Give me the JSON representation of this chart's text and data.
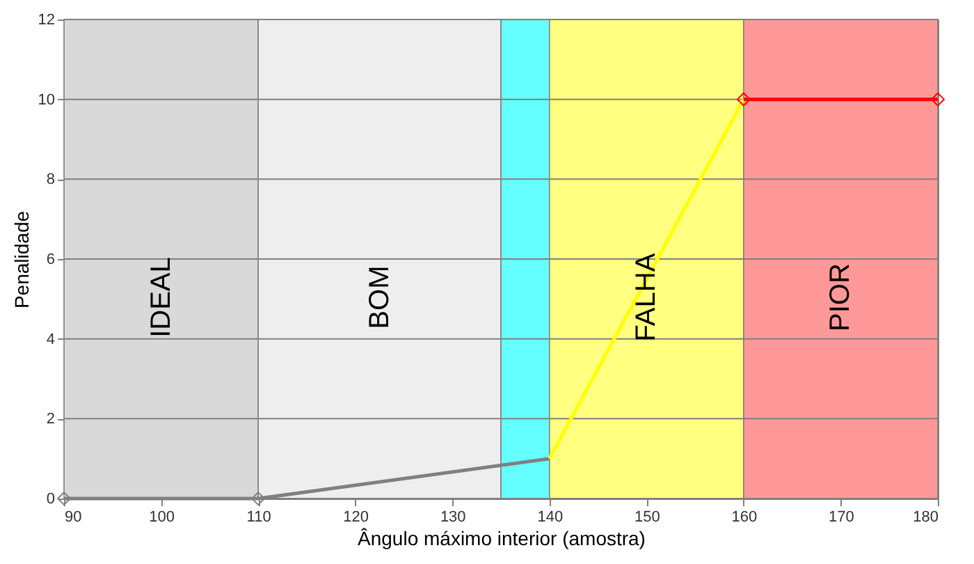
{
  "chart_data": {
    "type": "line",
    "xlabel": "Ângulo máximo interior (amostra)",
    "ylabel": "Penalidade",
    "xlim": [
      90,
      180
    ],
    "xticks": [
      90,
      100,
      110,
      120,
      130,
      140,
      150,
      160,
      170,
      180
    ],
    "ylim": [
      0,
      12
    ],
    "yticks": [
      0,
      2,
      4,
      6,
      8,
      10,
      12
    ],
    "grid": "y",
    "bands": [
      {
        "axis": "x",
        "from": 90,
        "to": 110,
        "label": "IDEAL",
        "color": "#d9d9d9"
      },
      {
        "axis": "x",
        "from": 110,
        "to": 135,
        "label": "BOM",
        "color": "#eeeeee"
      },
      {
        "axis": "x",
        "from": 135,
        "to": 140,
        "label": null,
        "color": "#66ffff"
      },
      {
        "axis": "x",
        "from": 140,
        "to": 160,
        "label": "FALHA",
        "color": "#ffff80"
      },
      {
        "axis": "x",
        "from": 160,
        "to": 180,
        "label": "PIOR",
        "color": "#ff9999"
      }
    ],
    "series": [
      {
        "color": "#808080",
        "x": [
          90,
          110
        ],
        "values": [
          0,
          0
        ],
        "marker": "diamond"
      },
      {
        "color": "#808080",
        "x": [
          110,
          140
        ],
        "values": [
          0,
          1
        ],
        "marker": "none"
      },
      {
        "color": "#ffff00",
        "x": [
          140,
          160
        ],
        "values": [
          1,
          10
        ],
        "marker": "none"
      },
      {
        "color": "#ff0000",
        "x": [
          160,
          180
        ],
        "values": [
          10,
          10
        ],
        "marker": "diamond"
      }
    ]
  }
}
